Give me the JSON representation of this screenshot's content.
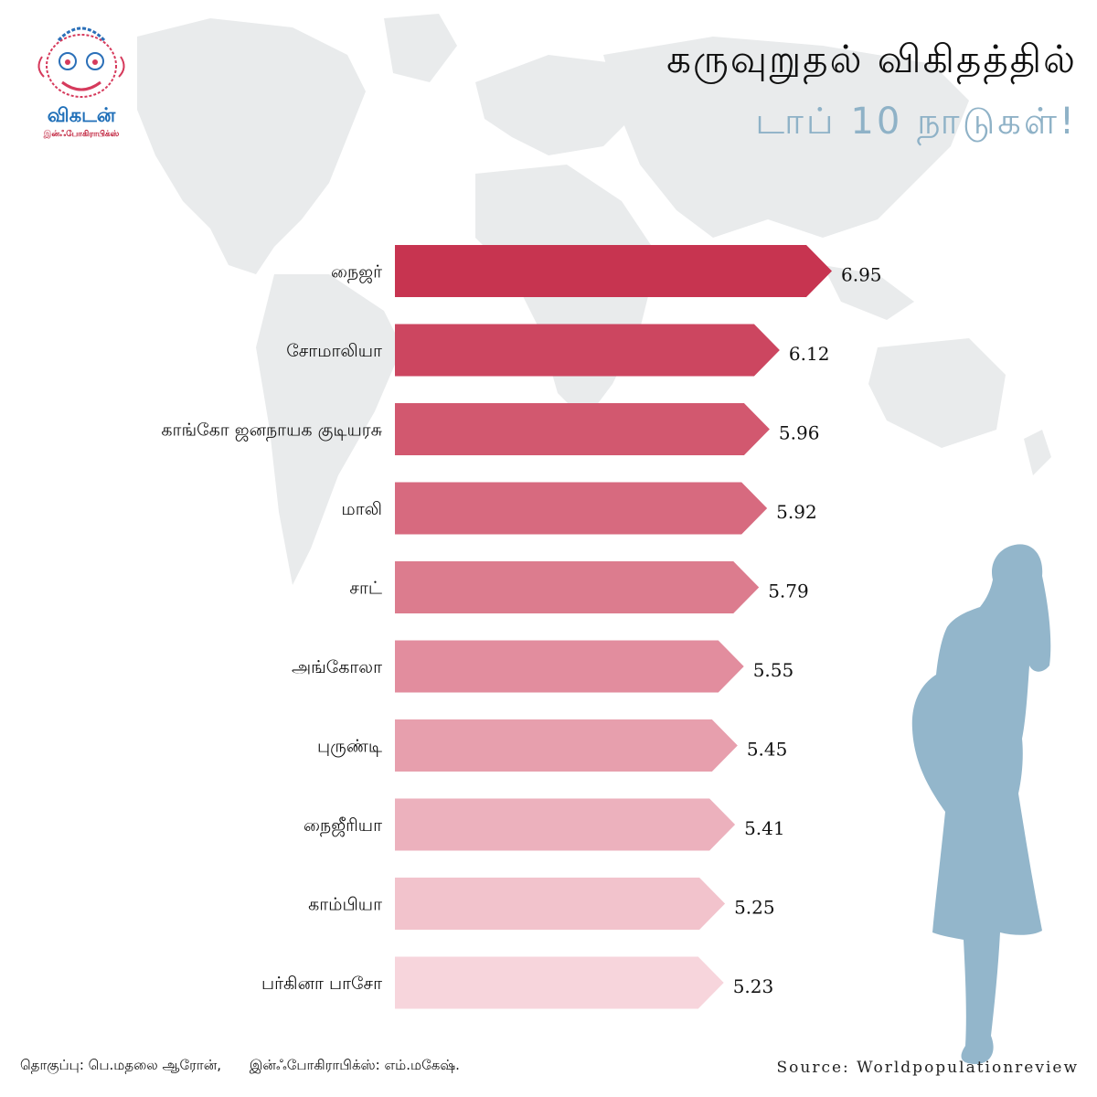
{
  "header": {
    "title_line1": "கருவுறுதல் விகிதத்தில்",
    "title_line2": "டாப் 10 நாடுகள்!"
  },
  "logo": {
    "name": "விகடன்",
    "subtitle": "இன்ஃபோகிராபிக்ஸ்"
  },
  "footer": {
    "compiled_by": "தொகுப்பு: பெ.மதலை ஆரோன்,",
    "infographics_by": "இன்ஃபோகிராபிக்ஸ்: எம்.மகேஷ்.",
    "source": "Source: Worldpopulationreview"
  },
  "colors": {
    "bar_darkest": "#c73450",
    "bar_lightest": "#f7d5dc",
    "map": "#e9ebec",
    "silhouette": "#93b6cb",
    "title_accent": "#8fb2c7"
  },
  "chart_data": {
    "type": "bar",
    "orientation": "horizontal",
    "categories": [
      "நைஜர்",
      "சோமாலியா",
      "காங்கோ ஜனநாயக குடியரசு",
      "மாலி",
      "சாட்",
      "அங்கோலா",
      "புருண்டி",
      "நைஜீரியா",
      "காம்பியா",
      "பர்கினா பாசோ"
    ],
    "values": [
      6.95,
      6.12,
      5.96,
      5.92,
      5.79,
      5.55,
      5.45,
      5.41,
      5.25,
      5.23
    ],
    "value_labels": [
      "6.95",
      "6.12",
      "5.96",
      "5.92",
      "5.79",
      "5.55",
      "5.45",
      "5.41",
      "5.25",
      "5.23"
    ],
    "xlim": [
      0,
      6.95
    ],
    "title": "கருவுறுதல் விகிதத்தில் டாப் 10 நாடுகள்!",
    "xlabel": "",
    "ylabel": "",
    "grid": false,
    "legend": "none"
  }
}
